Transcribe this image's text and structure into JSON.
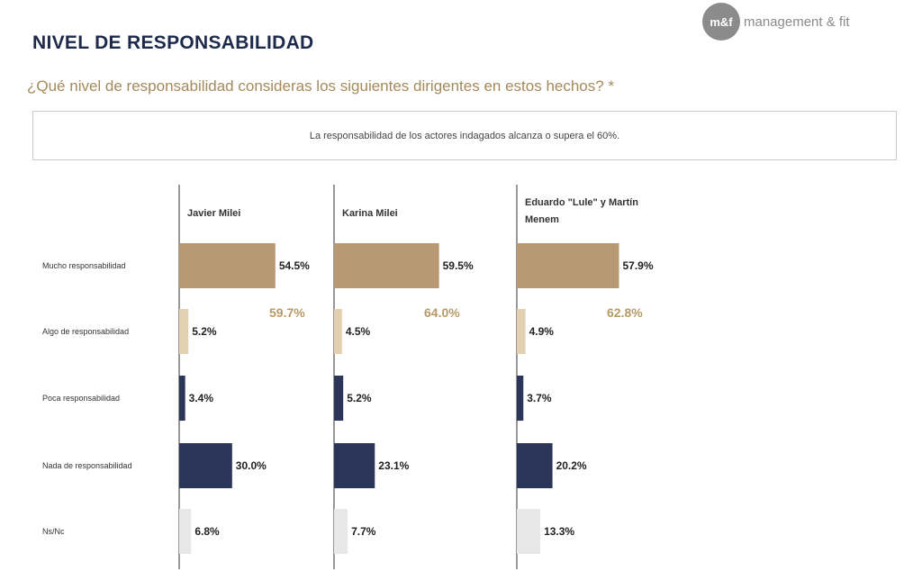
{
  "header": {
    "title": "NIVEL DE RESPONSABILIDAD",
    "question": "¿Qué nivel de responsabilidad consideras los siguientes dirigentes en estos hechos? *",
    "note": "La responsabilidad de los actores indagados alcanza o supera el 60%."
  },
  "logo": {
    "mark": "m&f",
    "text": "management & fit"
  },
  "chart_data": {
    "type": "bar",
    "orientation": "horizontal",
    "categories": [
      "Mucho responsabilidad",
      "Algo de responsabilidad",
      "Poca responsabilidad",
      "Nada de responsabilidad",
      "Ns/Nc"
    ],
    "category_colors": [
      "#b79a73",
      "#e3d0b1",
      "#2b3558",
      "#2b3558",
      "#e8e8e8"
    ],
    "series": [
      {
        "name": "Javier Milei",
        "name_lines": [
          "Javier Milei"
        ],
        "values": [
          54.5,
          5.2,
          3.4,
          30.0,
          6.8
        ],
        "value_labels": [
          "54.5%",
          "5.2%",
          "3.4%",
          "30.0%",
          "6.8%"
        ],
        "sum_label": "59.7%"
      },
      {
        "name": "Karina Milei",
        "name_lines": [
          "Karina Milei"
        ],
        "values": [
          59.5,
          4.5,
          5.2,
          23.1,
          7.7
        ],
        "value_labels": [
          "59.5%",
          "4.5%",
          "5.2%",
          "23.1%",
          "7.7%"
        ],
        "sum_label": "64.0%"
      },
      {
        "name": "Eduardo \"Lule\" y Martín Menem",
        "name_lines": [
          "Eduardo \"Lule\" y Martín",
          "Menem"
        ],
        "values": [
          57.9,
          4.9,
          3.7,
          20.2,
          13.3
        ],
        "value_labels": [
          "57.9%",
          "4.9%",
          "3.7%",
          "20.2%",
          "13.3%"
        ],
        "sum_label": "62.8%"
      }
    ],
    "xlim": [
      0,
      60
    ],
    "grid": false,
    "legend": "none"
  }
}
